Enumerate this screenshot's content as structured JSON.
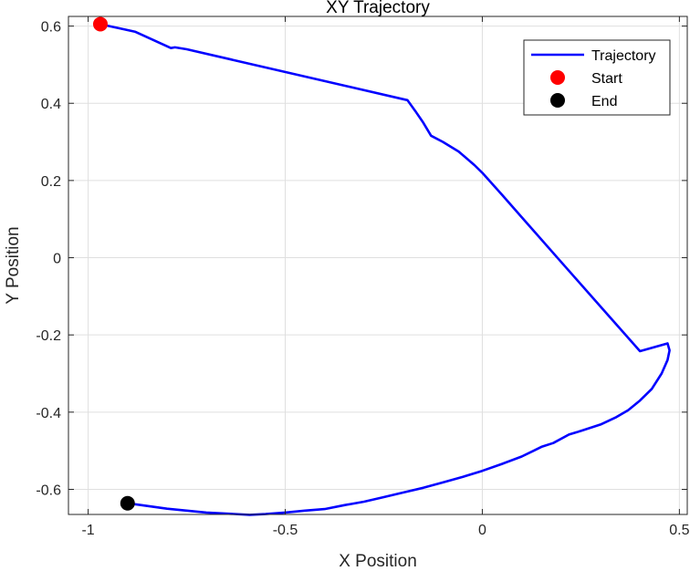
{
  "chart_data": {
    "type": "line",
    "title": "XY Trajectory",
    "xlabel": "X Position",
    "ylabel": "Y Position",
    "xlim": [
      -1.05,
      0.52
    ],
    "ylim": [
      -0.665,
      0.625
    ],
    "xticks": [
      -1,
      -0.5,
      0,
      0.5
    ],
    "xtick_labels": [
      "-1",
      "-0.5",
      "0",
      "0.5"
    ],
    "yticks": [
      0.6,
      0.4,
      0.2,
      0,
      -0.2,
      -0.4,
      -0.6
    ],
    "ytick_labels": [
      "0.6",
      "0.4",
      "0.2",
      "0",
      "-0.2",
      "-0.4",
      "-0.6"
    ],
    "grid": true,
    "legend_position": "top-right",
    "legend": [
      "Trajectory",
      "Start",
      "End"
    ],
    "colors": {
      "trajectory": "#0000ff",
      "start": "#ff0000",
      "end": "#000000"
    },
    "series": [
      {
        "name": "Trajectory",
        "x": [
          -0.969,
          -0.88,
          -0.79,
          -0.78,
          -0.75,
          -0.19,
          -0.17,
          -0.15,
          -0.13,
          -0.1,
          -0.06,
          -0.02,
          0.0,
          0.05,
          0.1,
          0.2,
          0.3,
          0.4,
          0.47,
          0.475,
          0.47,
          0.455,
          0.43,
          0.4,
          0.37,
          0.34,
          0.3,
          0.24,
          0.22,
          0.18,
          0.15,
          0.13,
          0.1,
          0.05,
          0.0,
          -0.05,
          -0.1,
          -0.15,
          -0.2,
          -0.25,
          -0.3,
          -0.35,
          -0.4,
          -0.45,
          -0.5,
          -0.55,
          -0.59,
          -0.7,
          -0.8,
          -0.9
        ],
        "y": [
          0.605,
          0.585,
          0.543,
          0.545,
          0.54,
          0.408,
          0.38,
          0.35,
          0.316,
          0.3,
          0.275,
          0.24,
          0.22,
          0.163,
          0.105,
          -0.011,
          -0.1265,
          -0.242,
          -0.222,
          -0.24,
          -0.265,
          -0.3,
          -0.34,
          -0.37,
          -0.395,
          -0.413,
          -0.432,
          -0.452,
          -0.458,
          -0.48,
          -0.49,
          -0.5,
          -0.515,
          -0.534,
          -0.552,
          -0.568,
          -0.582,
          -0.596,
          -0.608,
          -0.62,
          -0.632,
          -0.641,
          -0.651,
          -0.655,
          -0.66,
          -0.664,
          -0.666,
          -0.66,
          -0.65,
          -0.636
        ]
      },
      {
        "name": "Start",
        "x": [
          -0.969
        ],
        "y": [
          0.605
        ]
      },
      {
        "name": "End",
        "x": [
          -0.9
        ],
        "y": [
          -0.636
        ]
      }
    ]
  }
}
